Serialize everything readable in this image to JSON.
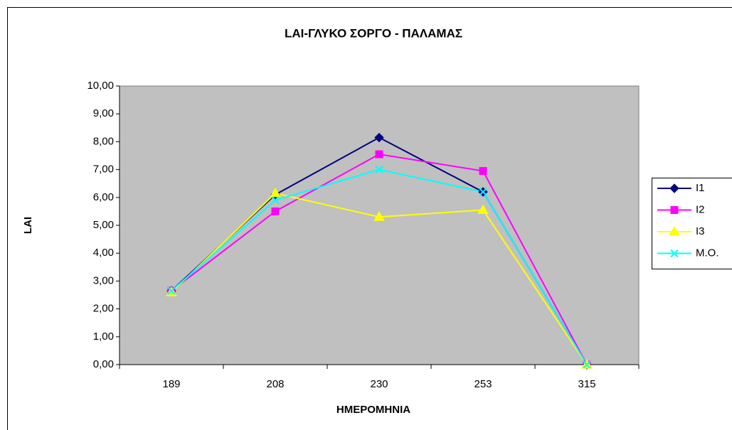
{
  "chart_data": {
    "type": "line",
    "title": "LAI-ΓΛΥΚΟ ΣΟΡΓΟ - ΠΑΛΑΜΑΣ",
    "x_label": "ΗΜΕΡΟΜΗΝΙΑ",
    "y_label": "LAI",
    "categories": [
      "189",
      "208",
      "230",
      "253",
      "315"
    ],
    "ylim": [
      0,
      10
    ],
    "yticks": [
      {
        "value": 0,
        "label": "0,00"
      },
      {
        "value": 1,
        "label": "1,00"
      },
      {
        "value": 2,
        "label": "2,00"
      },
      {
        "value": 3,
        "label": "3,00"
      },
      {
        "value": 4,
        "label": "4,00"
      },
      {
        "value": 5,
        "label": "5,00"
      },
      {
        "value": 6,
        "label": "6,00"
      },
      {
        "value": 7,
        "label": "7,00"
      },
      {
        "value": 8,
        "label": "8,00"
      },
      {
        "value": 9,
        "label": "9,00"
      },
      {
        "value": 10,
        "label": "10,00"
      }
    ],
    "legend": "right",
    "series": [
      {
        "name": "I1",
        "color": "#000080",
        "marker": "diamond",
        "values": [
          2.65,
          6.1,
          8.15,
          6.2,
          0
        ]
      },
      {
        "name": "I2",
        "color": "#ff00ff",
        "marker": "square",
        "values": [
          2.65,
          5.5,
          7.55,
          6.95,
          0
        ]
      },
      {
        "name": "I3",
        "color": "#ffff00",
        "marker": "triangle",
        "values": [
          2.6,
          6.15,
          5.3,
          5.55,
          0
        ]
      },
      {
        "name": "M.O.",
        "color": "#00ffff",
        "marker": "x",
        "values": [
          2.65,
          5.9,
          7.0,
          6.2,
          0
        ]
      }
    ]
  }
}
